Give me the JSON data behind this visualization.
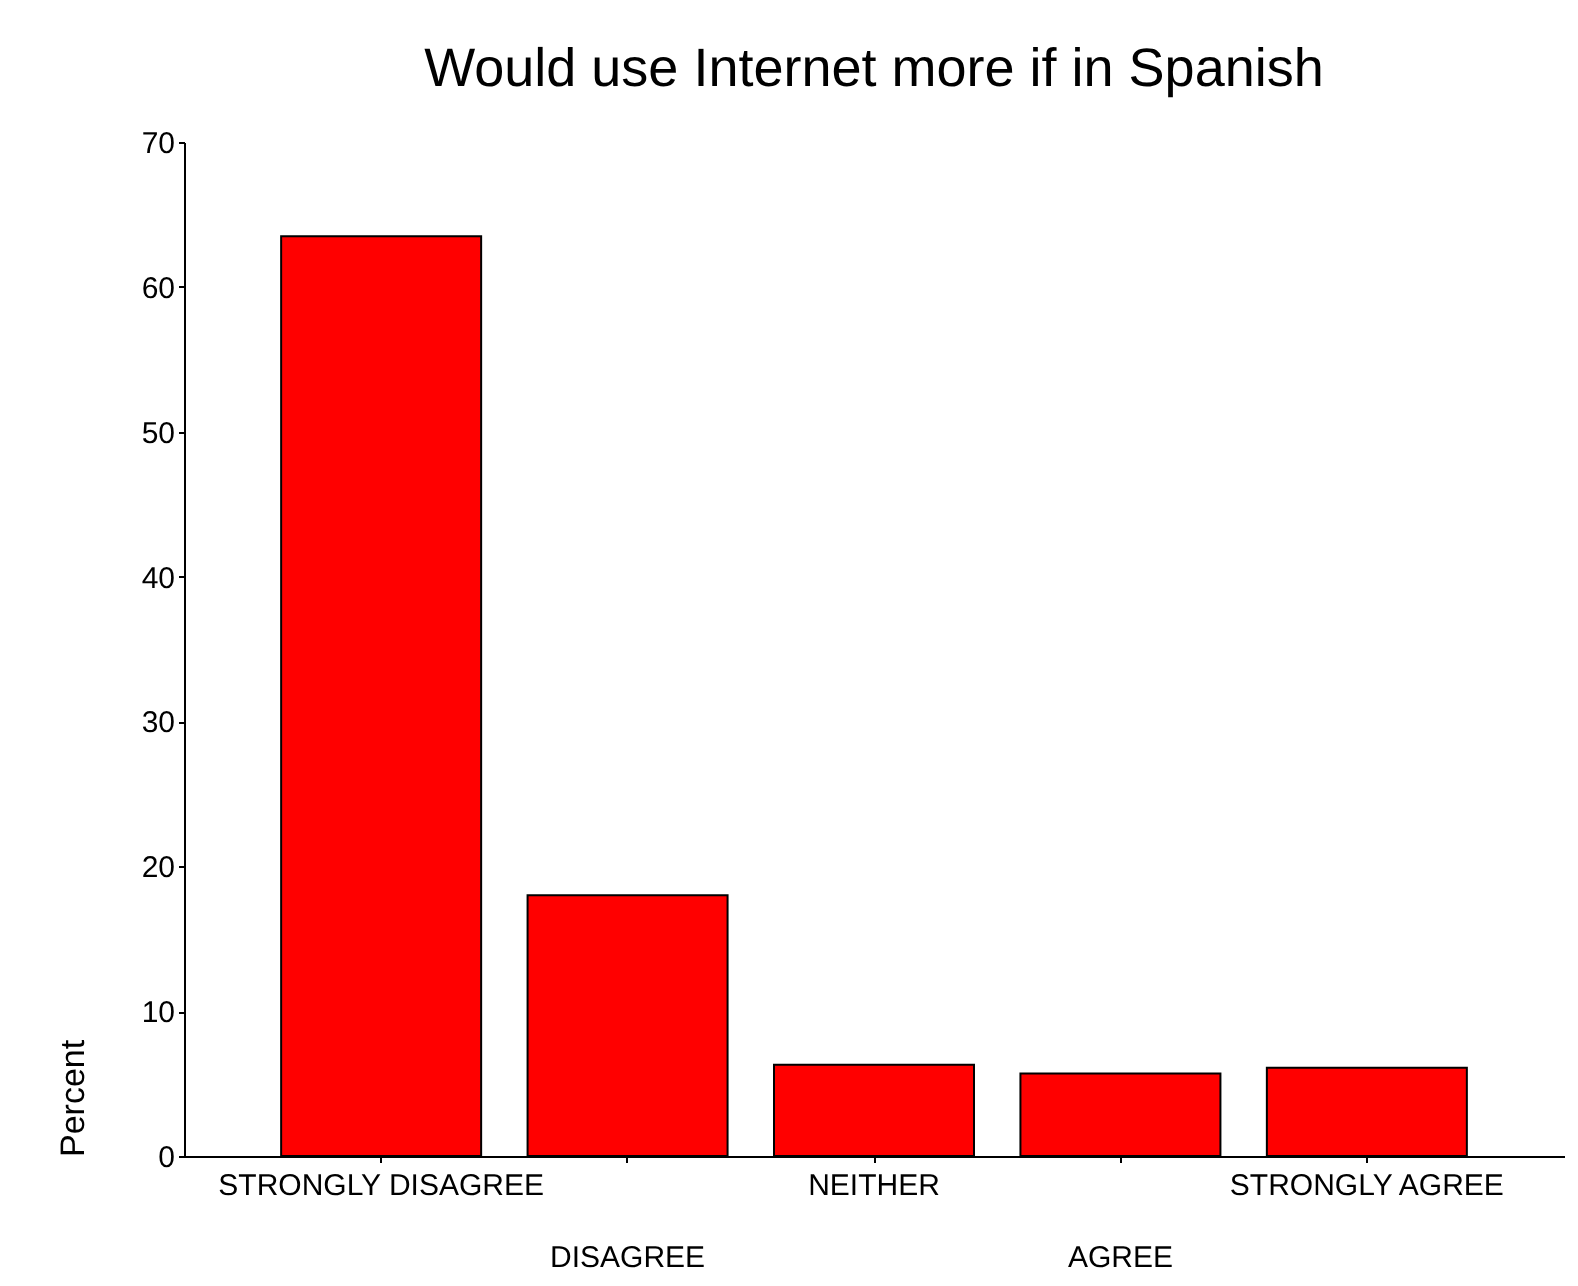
{
  "chart_data": {
    "type": "bar",
    "title": "Would use Internet more if in Spanish",
    "ylabel": "Percent",
    "categories": [
      "STRONGLY DISAGREE",
      "DISAGREE",
      "NEITHER",
      "AGREE",
      "STRONGLY AGREE"
    ],
    "values": [
      63.5,
      18.0,
      6.3,
      5.7,
      6.1
    ],
    "color": "#ff0000",
    "ylim": [
      0,
      70
    ],
    "yticks": [
      0,
      10,
      20,
      30,
      40,
      50,
      60,
      70
    ],
    "grid": false
  }
}
